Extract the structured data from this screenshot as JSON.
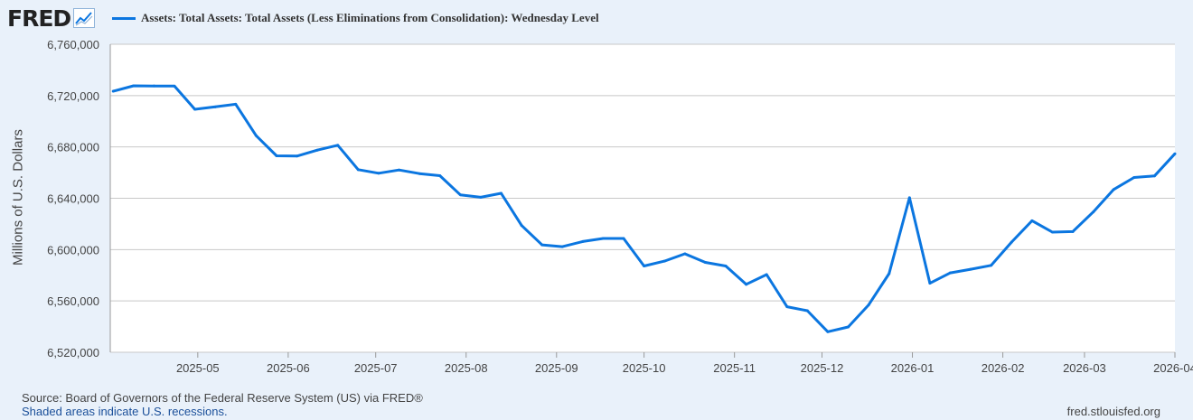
{
  "header": {
    "logo": "FRED",
    "logo_icon": "trend-chart-icon"
  },
  "chart_data": {
    "type": "line",
    "title": "",
    "legend": "Assets: Total Assets: Total Assets (Less Eliminations from Consolidation): Wednesday Level",
    "legend_position": "top-left",
    "ylabel": "Millions of U.S. Dollars",
    "xlabel": "",
    "ylim": [
      6520000,
      6760000
    ],
    "xlim": [
      "2025-04-01",
      "2026-04-01"
    ],
    "grid": true,
    "yticks": [
      {
        "value": 6520000,
        "label": "6,520,000"
      },
      {
        "value": 6560000,
        "label": "6,560,000"
      },
      {
        "value": 6600000,
        "label": "6,600,000"
      },
      {
        "value": 6640000,
        "label": "6,640,000"
      },
      {
        "value": 6680000,
        "label": "6,680,000"
      },
      {
        "value": 6720000,
        "label": "6,720,000"
      },
      {
        "value": 6760000,
        "label": "6,760,000"
      }
    ],
    "xticks": [
      {
        "date": "2025-05-01",
        "label": "2025-05"
      },
      {
        "date": "2025-06-01",
        "label": "2025-06"
      },
      {
        "date": "2025-07-01",
        "label": "2025-07"
      },
      {
        "date": "2025-08-01",
        "label": "2025-08"
      },
      {
        "date": "2025-09-01",
        "label": "2025-09"
      },
      {
        "date": "2025-10-01",
        "label": "2025-10"
      },
      {
        "date": "2025-11-01",
        "label": "2025-11"
      },
      {
        "date": "2025-12-01",
        "label": "2025-12"
      },
      {
        "date": "2026-01-01",
        "label": "2026-01"
      },
      {
        "date": "2026-02-01",
        "label": "2026-02"
      },
      {
        "date": "2026-03-01",
        "label": "2026-03"
      },
      {
        "date": "2026-04-01",
        "label": "2026-04"
      }
    ],
    "series": [
      {
        "color": "#0b76e0",
        "x": [
          "2025-04-02",
          "2025-04-09",
          "2025-04-16",
          "2025-04-23",
          "2025-04-30",
          "2025-05-07",
          "2025-05-14",
          "2025-05-21",
          "2025-05-28",
          "2025-06-04",
          "2025-06-11",
          "2025-06-18",
          "2025-06-25",
          "2025-07-02",
          "2025-07-09",
          "2025-07-16",
          "2025-07-23",
          "2025-07-30",
          "2025-08-06",
          "2025-08-13",
          "2025-08-20",
          "2025-08-27",
          "2025-09-03",
          "2025-09-10",
          "2025-09-17",
          "2025-09-24",
          "2025-10-01",
          "2025-10-08",
          "2025-10-15",
          "2025-10-22",
          "2025-10-29",
          "2025-11-05",
          "2025-11-12",
          "2025-11-19",
          "2025-11-26",
          "2025-12-03",
          "2025-12-10",
          "2025-12-17",
          "2025-12-24",
          "2025-12-31",
          "2026-01-07",
          "2026-01-14",
          "2026-01-21",
          "2026-01-28",
          "2026-02-04",
          "2026-02-11",
          "2026-02-18",
          "2026-02-25",
          "2026-03-04",
          "2026-03-11",
          "2026-03-18",
          "2026-03-25",
          "2026-04-01"
        ],
        "y": [
          6723400,
          6727600,
          6727500,
          6727400,
          6709300,
          6711200,
          6713300,
          6688800,
          6673100,
          6672900,
          6677500,
          6681300,
          6662300,
          6659500,
          6662000,
          6659200,
          6657600,
          6642700,
          6640800,
          6643900,
          6618800,
          6603700,
          6602300,
          6606300,
          6608700,
          6608700,
          6587200,
          6591000,
          6596700,
          6590000,
          6587200,
          6572900,
          6580500,
          6555500,
          6552400,
          6536000,
          6539700,
          6556900,
          6581200,
          6640400,
          6573800,
          6581900,
          6584700,
          6587700,
          6605900,
          6622500,
          6613600,
          6614000,
          6629300,
          6646800,
          6656200,
          6657400,
          6674700
        ]
      }
    ]
  },
  "footer": {
    "source": "Source: Board of Governors of the Federal Reserve System (US) via FRED®",
    "recessions": "Shaded areas indicate U.S. recessions.",
    "site": "fred.stlouisfed.org"
  }
}
